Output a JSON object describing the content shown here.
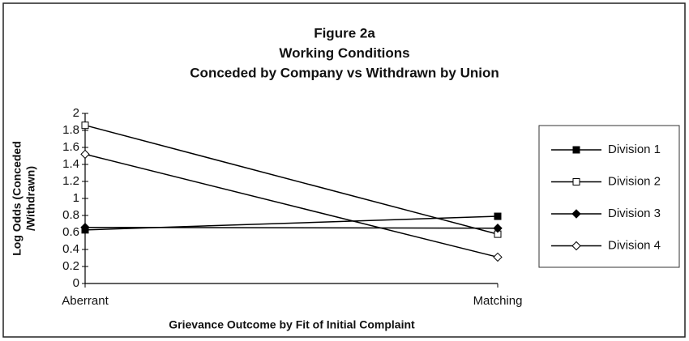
{
  "chart_data": {
    "type": "line",
    "title": [
      "Figure 2a",
      "Working Conditions",
      "Conceded by Company vs Withdrawn by Union"
    ],
    "xlabel": "Grievance Outcome by Fit of Initial Complaint",
    "ylabel": [
      "Log Odds (Conceded",
      "/Withdrawn)"
    ],
    "categories": [
      "Aberrant",
      "Matching"
    ],
    "series": [
      {
        "name": "Division 1",
        "color": "#000000",
        "marker": "square",
        "filled": true,
        "values": [
          0.63,
          0.79
        ]
      },
      {
        "name": "Division 2",
        "color": "#000000",
        "marker": "square",
        "filled": false,
        "values": [
          1.86,
          0.58
        ]
      },
      {
        "name": "Division 3",
        "color": "#000000",
        "marker": "diamond",
        "filled": true,
        "values": [
          0.66,
          0.65
        ]
      },
      {
        "name": "Division 4",
        "color": "#000000",
        "marker": "diamond",
        "filled": false,
        "values": [
          1.52,
          0.31
        ]
      }
    ],
    "ylim": [
      0,
      2
    ],
    "yticks": [
      0,
      0.2,
      0.4,
      0.6,
      0.8,
      1,
      1.2,
      1.4,
      1.6,
      1.8,
      2
    ],
    "grid": false,
    "legend": "right"
  }
}
